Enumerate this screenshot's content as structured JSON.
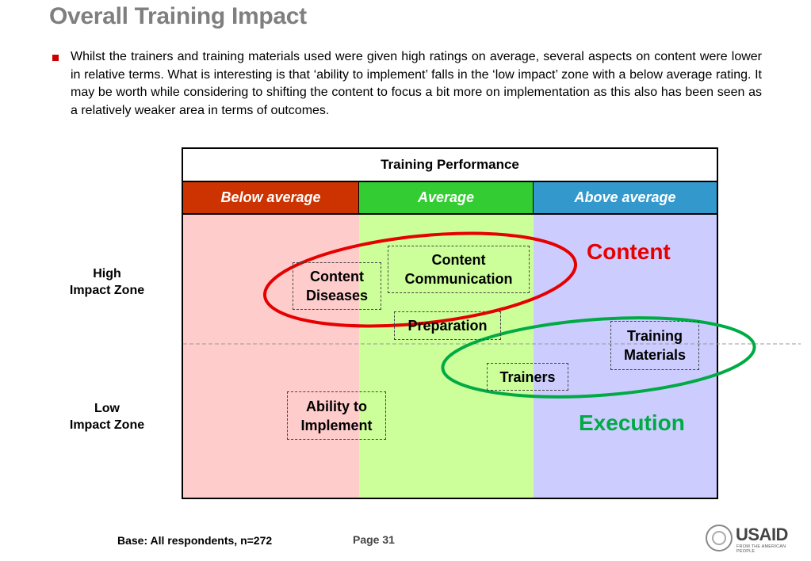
{
  "slide": {
    "title": "Overall Training Impact",
    "body": "Whilst the trainers and training materials used were given high ratings on average, several aspects on content were lower in relative terms. What is interesting is that ‘ability to implement’ falls in the ‘low impact’ zone with a below average rating. It may be worth while considering to shifting the content to focus a bit more on implementation as this also has been seen as a relatively weaker area in terms of outcomes."
  },
  "matrix": {
    "header": "Training Performance",
    "columns": [
      "Below average",
      "Average",
      "Above average"
    ],
    "column_colors": {
      "below": "#cc3300",
      "average": "#33cc33",
      "above": "#3399cc"
    },
    "rows": {
      "high": "High\nImpact Zone",
      "low": "Low\nImpact Zone"
    },
    "items": {
      "content_diseases": "Content\nDiseases",
      "content_communication": "Content\nCommunication",
      "preparation": "Preparation",
      "training_materials": "Training\nMaterials",
      "trainers": "Trainers",
      "ability_to_implement": "Ability to\nImplement"
    },
    "groups": {
      "content": "Content",
      "execution": "Execution"
    },
    "group_colors": {
      "content": "#e60000",
      "execution": "#00aa44"
    }
  },
  "footer": {
    "base": "Base: All respondents, n=272",
    "page": "Page 31",
    "logo_text": "USAID",
    "logo_tagline": "FROM THE AMERICAN PEOPLE"
  }
}
